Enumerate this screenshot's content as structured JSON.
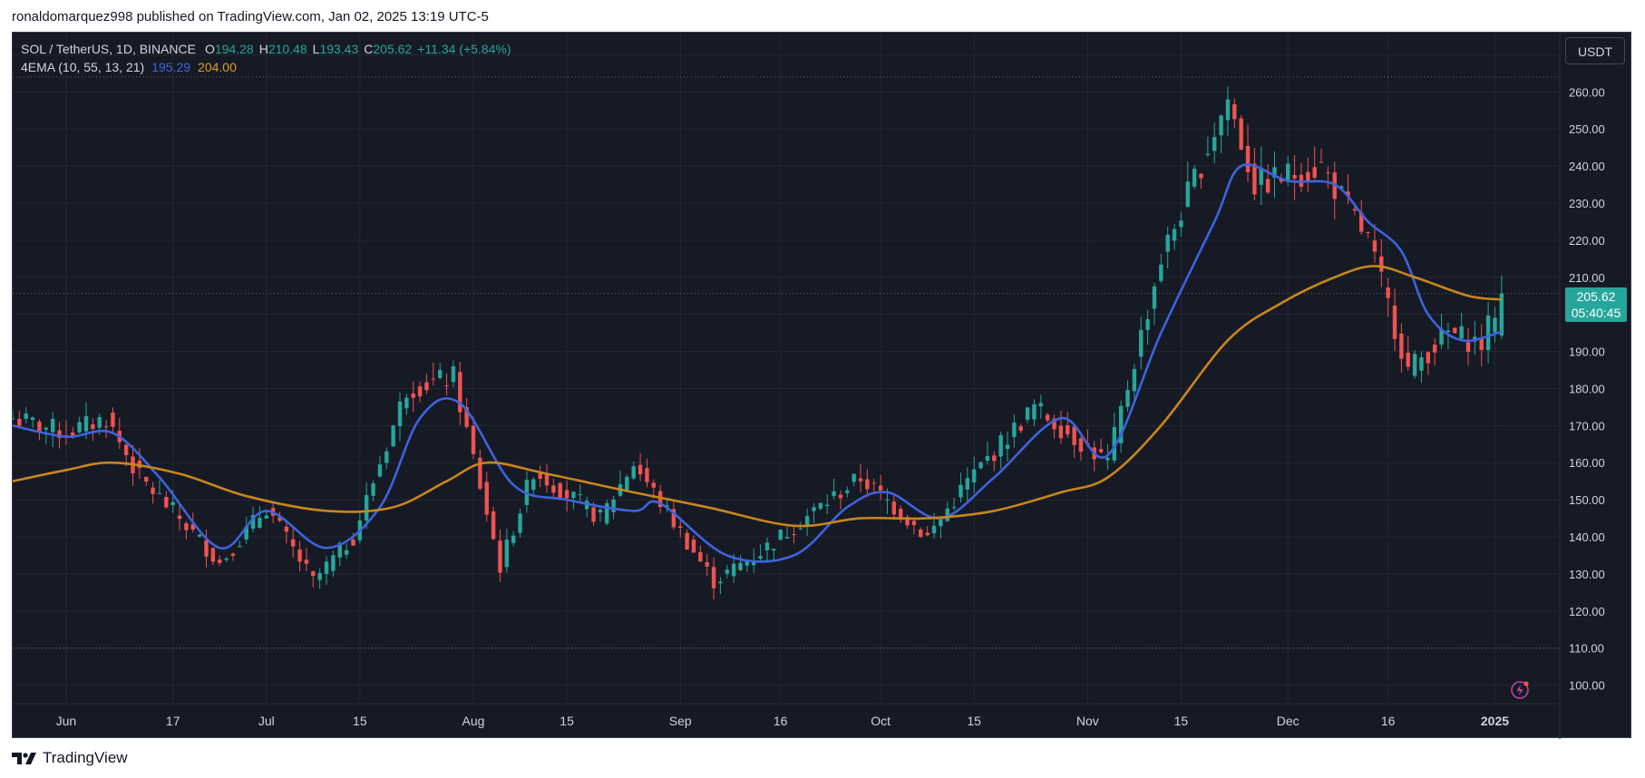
{
  "caption": "ronaldomarquez998 published on TradingView.com, Jan 02, 2025 13:19 UTC-5",
  "legend": {
    "symbol": "SOL / TetherUS, 1D, BINANCE",
    "o_label": "O",
    "o_value": "194.28",
    "h_label": "H",
    "h_value": "210.48",
    "l_label": "L",
    "l_value": "193.43",
    "c_label": "C",
    "c_value": "205.62",
    "change": "+11.34 (+5.84%)",
    "indicator": "4EMA (10, 55, 13, 21)",
    "ema_fast": "195.29",
    "ema_slow": "204.00"
  },
  "currency": "USDT",
  "price_tag": {
    "price": "205.62",
    "countdown": "05:40:45"
  },
  "footer": {
    "brand": "TradingView"
  },
  "colors": {
    "background": "#161a25",
    "up": "#26a69a",
    "down": "#ef5350",
    "ema_fast": "#3d63dd",
    "ema_slow": "#c8861c",
    "grid": "#232734",
    "axis_text": "#d1d4dc"
  },
  "chart_data": {
    "type": "candlestick",
    "title": "SOL / TetherUS, 1D, BINANCE",
    "y_axis": {
      "ticks": [
        100,
        110,
        120,
        130,
        140,
        150,
        160,
        170,
        180,
        190,
        200,
        210,
        220,
        230,
        240,
        250,
        260,
        270
      ],
      "range": [
        96,
        274
      ],
      "position": "right"
    },
    "x_axis": {
      "range": [
        "2024-05-24",
        "2025-01-08"
      ],
      "ticks": [
        {
          "date": "2024-06-01",
          "label": "Jun"
        },
        {
          "date": "2024-06-17",
          "label": "17"
        },
        {
          "date": "2024-07-01",
          "label": "Jul"
        },
        {
          "date": "2024-07-15",
          "label": "15"
        },
        {
          "date": "2024-08-01",
          "label": "Aug"
        },
        {
          "date": "2024-08-15",
          "label": "15"
        },
        {
          "date": "2024-09-01",
          "label": "Sep"
        },
        {
          "date": "2024-09-16",
          "label": "16"
        },
        {
          "date": "2024-10-01",
          "label": "Oct"
        },
        {
          "date": "2024-10-15",
          "label": "15"
        },
        {
          "date": "2024-11-01",
          "label": "Nov"
        },
        {
          "date": "2024-11-15",
          "label": "15"
        },
        {
          "date": "2024-12-01",
          "label": "Dec"
        },
        {
          "date": "2024-12-16",
          "label": "16"
        },
        {
          "date": "2025-01-01",
          "label": "2025"
        }
      ]
    },
    "reference_lines": [
      264,
      205.62,
      110
    ],
    "key_closes": [
      {
        "date": "2024-05-24",
        "close": 172
      },
      {
        "date": "2024-06-01",
        "close": 168
      },
      {
        "date": "2024-06-07",
        "close": 172
      },
      {
        "date": "2024-06-12",
        "close": 156
      },
      {
        "date": "2024-06-18",
        "close": 145
      },
      {
        "date": "2024-06-24",
        "close": 133
      },
      {
        "date": "2024-07-01",
        "close": 148
      },
      {
        "date": "2024-07-08",
        "close": 128
      },
      {
        "date": "2024-07-14",
        "close": 140
      },
      {
        "date": "2024-07-22",
        "close": 180
      },
      {
        "date": "2024-07-29",
        "close": 183
      },
      {
        "date": "2024-08-05",
        "close": 132
      },
      {
        "date": "2024-08-10",
        "close": 158
      },
      {
        "date": "2024-08-20",
        "close": 145
      },
      {
        "date": "2024-08-25",
        "close": 160
      },
      {
        "date": "2024-09-06",
        "close": 128
      },
      {
        "date": "2024-09-13",
        "close": 136
      },
      {
        "date": "2024-09-21",
        "close": 147
      },
      {
        "date": "2024-09-28",
        "close": 156
      },
      {
        "date": "2024-10-08",
        "close": 140
      },
      {
        "date": "2024-10-14",
        "close": 155
      },
      {
        "date": "2024-10-24",
        "close": 175
      },
      {
        "date": "2024-11-04",
        "close": 160
      },
      {
        "date": "2024-11-12",
        "close": 215
      },
      {
        "date": "2024-11-22",
        "close": 258
      },
      {
        "date": "2024-11-26",
        "close": 235
      },
      {
        "date": "2024-12-06",
        "close": 240
      },
      {
        "date": "2024-12-13",
        "close": 220
      },
      {
        "date": "2024-12-19",
        "close": 185
      },
      {
        "date": "2024-12-25",
        "close": 195
      },
      {
        "date": "2024-12-30",
        "close": 192
      },
      {
        "date": "2025-01-02",
        "close": 205.62
      }
    ],
    "series": [
      {
        "name": "4EMA (10, 55, 13, 21)",
        "last": 195.29,
        "points": [
          [
            "2024-05-24",
            170
          ],
          [
            "2024-06-01",
            167
          ],
          [
            "2024-06-08",
            168
          ],
          [
            "2024-06-15",
            156
          ],
          [
            "2024-06-24",
            137
          ],
          [
            "2024-07-01",
            147
          ],
          [
            "2024-07-10",
            137
          ],
          [
            "2024-07-18",
            148
          ],
          [
            "2024-07-24",
            172
          ],
          [
            "2024-07-30",
            176
          ],
          [
            "2024-08-07",
            154
          ],
          [
            "2024-08-15",
            150
          ],
          [
            "2024-08-25",
            147
          ],
          [
            "2024-08-29",
            149
          ],
          [
            "2024-09-08",
            135
          ],
          [
            "2024-09-18",
            135
          ],
          [
            "2024-09-26",
            148
          ],
          [
            "2024-10-02",
            152
          ],
          [
            "2024-10-10",
            145
          ],
          [
            "2024-10-18",
            156
          ],
          [
            "2024-10-28",
            172
          ],
          [
            "2024-11-04",
            162
          ],
          [
            "2024-11-12",
            195
          ],
          [
            "2024-11-20",
            225
          ],
          [
            "2024-11-24",
            240
          ],
          [
            "2024-12-01",
            236
          ],
          [
            "2024-12-08",
            235
          ],
          [
            "2024-12-13",
            225
          ],
          [
            "2024-12-18",
            217
          ],
          [
            "2024-12-22",
            200
          ],
          [
            "2024-12-27",
            193
          ],
          [
            "2025-01-02",
            195.29
          ]
        ]
      },
      {
        "name": "",
        "last": 204.0,
        "points": [
          [
            "2024-05-24",
            155
          ],
          [
            "2024-06-01",
            158
          ],
          [
            "2024-06-08",
            160
          ],
          [
            "2024-06-18",
            157
          ],
          [
            "2024-06-28",
            151
          ],
          [
            "2024-07-10",
            147
          ],
          [
            "2024-07-20",
            148
          ],
          [
            "2024-07-28",
            155
          ],
          [
            "2024-08-03",
            160
          ],
          [
            "2024-08-12",
            157
          ],
          [
            "2024-08-25",
            152
          ],
          [
            "2024-09-05",
            148
          ],
          [
            "2024-09-18",
            143
          ],
          [
            "2024-09-28",
            145
          ],
          [
            "2024-10-08",
            145
          ],
          [
            "2024-10-18",
            147
          ],
          [
            "2024-10-28",
            152
          ],
          [
            "2024-11-04",
            156
          ],
          [
            "2024-11-12",
            170
          ],
          [
            "2024-11-22",
            193
          ],
          [
            "2024-11-30",
            203
          ],
          [
            "2024-12-08",
            210
          ],
          [
            "2024-12-14",
            213
          ],
          [
            "2024-12-20",
            210
          ],
          [
            "2024-12-28",
            205
          ],
          [
            "2025-01-02",
            204.0
          ]
        ]
      }
    ],
    "grid": true,
    "legend": "top-left"
  }
}
